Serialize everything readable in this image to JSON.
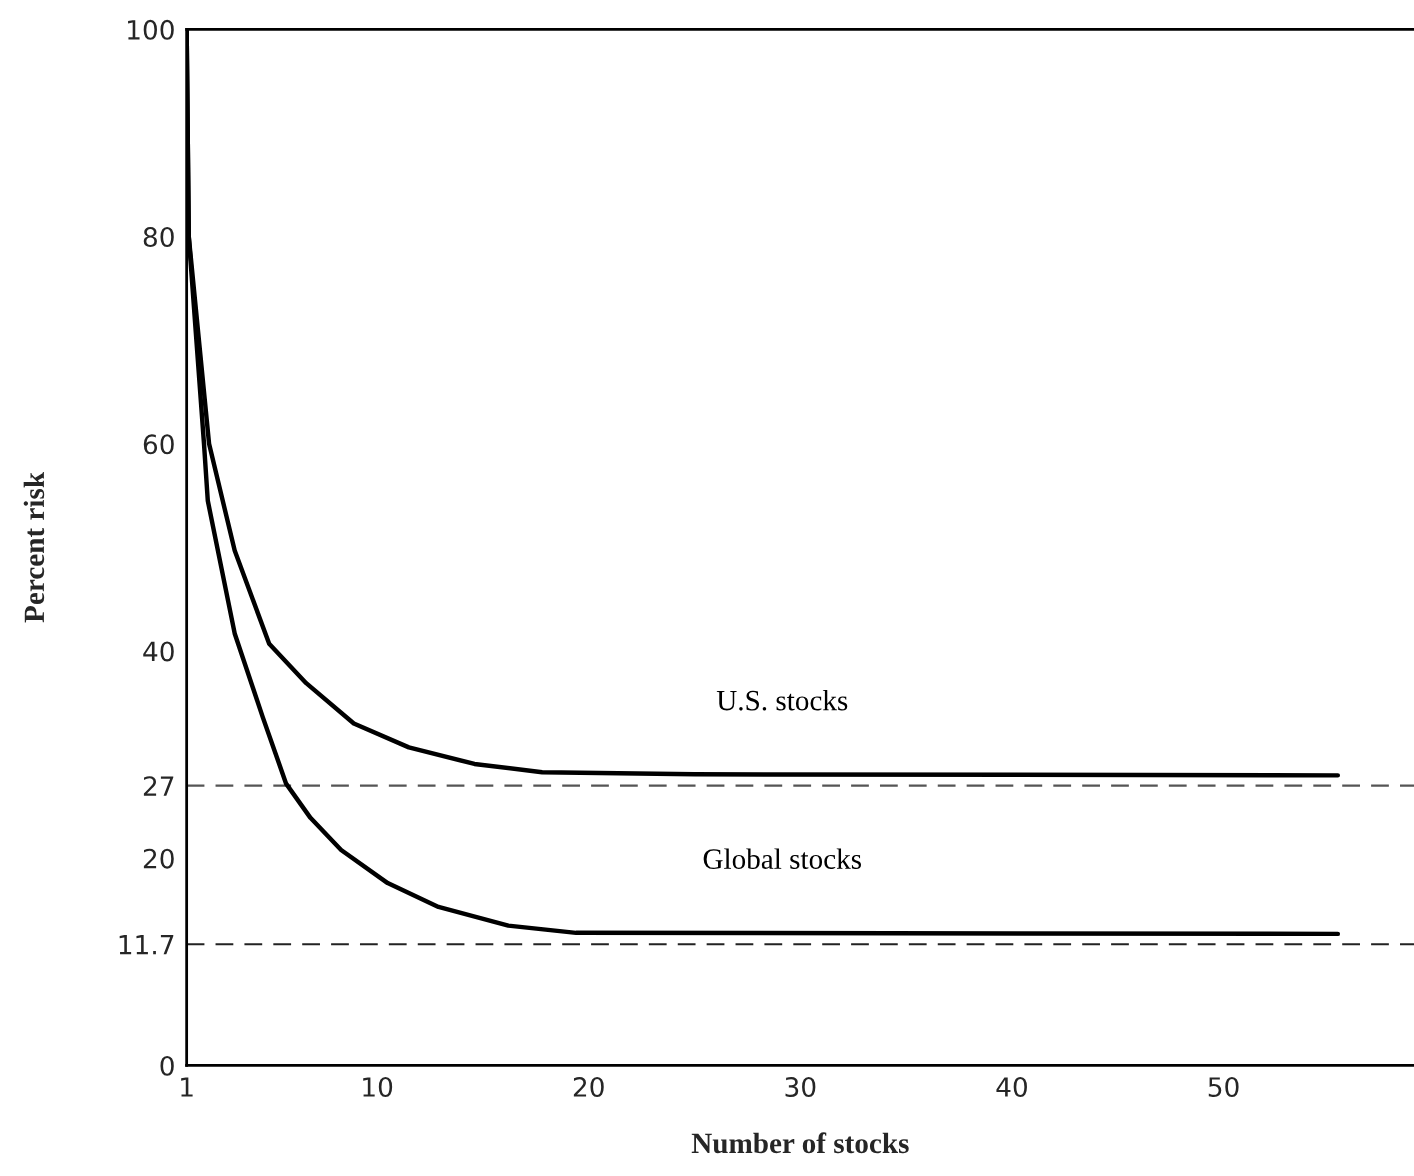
{
  "chart_data": {
    "type": "line",
    "xlabel": "Number of stocks",
    "ylabel": "Percent risk",
    "series": [
      {
        "name": "U.S. stocks",
        "color": "#000000",
        "x": [
          1,
          1.1,
          2.06,
          3.27,
          4.9,
          6.65,
          8.9,
          11.5,
          14.6,
          17.8,
          25,
          55.4
        ],
        "values": [
          100,
          80,
          60,
          49.7,
          40.7,
          36.9,
          33,
          30.7,
          29.1,
          28.3,
          28.1,
          28
        ]
      },
      {
        "name": "Global stocks",
        "color": "#000000",
        "x": [
          1,
          1.1,
          1.82,
          2.0,
          3.27,
          4.6,
          5.7,
          6.85,
          8.3,
          10.5,
          12.9,
          16.2,
          19.4,
          55.4
        ],
        "values": [
          100,
          80,
          60,
          54.5,
          41.7,
          33.6,
          27.2,
          23.9,
          20.8,
          17.6,
          15.3,
          13.5,
          12.8,
          12.7
        ]
      }
    ],
    "xlim": [
      1,
      59
    ],
    "ylim": [
      0,
      100
    ],
    "xticks": [
      1,
      10,
      20,
      30,
      40,
      50
    ],
    "yticks": [
      0,
      11.7,
      20,
      27,
      40,
      60,
      80,
      100
    ],
    "ref_lines": [
      {
        "axis": "y",
        "value": 27,
        "color": "#555555",
        "line_style": "dashed"
      },
      {
        "axis": "y",
        "value": 11.7,
        "color": "#222222",
        "line_style": "dashed"
      }
    ],
    "grid": false,
    "legend": false,
    "marker": "none",
    "line_style": "solid"
  }
}
